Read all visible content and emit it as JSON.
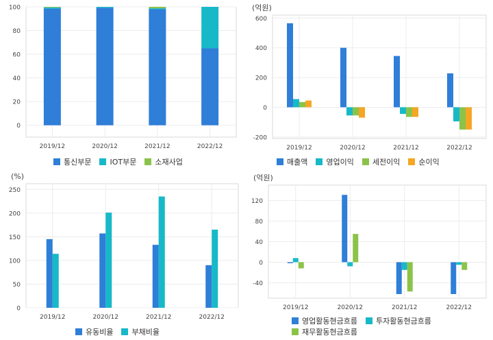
{
  "chart_data": [
    {
      "id": "tl",
      "type": "bar",
      "stacked": true,
      "unit": "",
      "categories": [
        "2019/12",
        "2020/12",
        "2021/12",
        "2022/12"
      ],
      "series": [
        {
          "name": "통신부문",
          "color": "#2f7ed8",
          "values": [
            98.5,
            99.3,
            98.0,
            65.0
          ]
        },
        {
          "name": "IOT부문",
          "color": "#17b9c8",
          "values": [
            1.0,
            0.7,
            0.8,
            35.0
          ]
        },
        {
          "name": "소재사업",
          "color": "#8bc34a",
          "values": [
            0.5,
            0.0,
            1.2,
            0.0
          ]
        }
      ],
      "ylim": [
        -10,
        100
      ],
      "yticks": [
        0,
        20,
        40,
        60,
        80,
        100
      ],
      "grid": true,
      "legend": "bottom"
    },
    {
      "id": "tr",
      "type": "bar",
      "unit": "(억원)",
      "categories": [
        "2019/12",
        "2020/12",
        "2021/12",
        "2022/12"
      ],
      "series": [
        {
          "name": "매출액",
          "color": "#2f7ed8",
          "values": [
            565,
            400,
            345,
            228
          ]
        },
        {
          "name": "영업이익",
          "color": "#17b9c8",
          "values": [
            55,
            -55,
            -45,
            -95
          ]
        },
        {
          "name": "세전이익",
          "color": "#8bc34a",
          "values": [
            35,
            -55,
            -65,
            -150
          ]
        },
        {
          "name": "순이익",
          "color": "#f5a623",
          "values": [
            45,
            -70,
            -65,
            -150
          ]
        }
      ],
      "ylim": [
        -210,
        620
      ],
      "yticks": [
        -200,
        0,
        200,
        400,
        600
      ],
      "grid": true,
      "legend": "bottom"
    },
    {
      "id": "bl",
      "type": "bar",
      "unit": "(%)",
      "categories": [
        "2019/12",
        "2020/12",
        "2021/12",
        "2022/12"
      ],
      "series": [
        {
          "name": "유동비율",
          "color": "#2f7ed8",
          "values": [
            145,
            157,
            133,
            90
          ]
        },
        {
          "name": "부채비율",
          "color": "#17b9c8",
          "values": [
            114,
            201,
            235,
            165
          ]
        }
      ],
      "ylim": [
        0,
        262
      ],
      "yticks": [
        0,
        50,
        100,
        150,
        200,
        250
      ],
      "grid": true,
      "legend": "bottom"
    },
    {
      "id": "br",
      "type": "bar",
      "unit": "(억원)",
      "categories": [
        "2019/12",
        "2020/12",
        "2021/12",
        "2022/12"
      ],
      "series": [
        {
          "name": "영업활동현금흐름",
          "color": "#2f7ed8",
          "values": [
            -2,
            131,
            -62,
            -62
          ]
        },
        {
          "name": "투자활동현금흐름",
          "color": "#17b9c8",
          "values": [
            8,
            -8,
            -15,
            -5
          ]
        },
        {
          "name": "재무활동현금흐름",
          "color": "#8bc34a",
          "values": [
            -12,
            55,
            -57,
            -15
          ]
        }
      ],
      "ylim": [
        -70,
        150
      ],
      "yticks": [
        -40,
        0,
        40,
        80,
        120
      ],
      "grid": true,
      "legend": "bottom"
    }
  ]
}
